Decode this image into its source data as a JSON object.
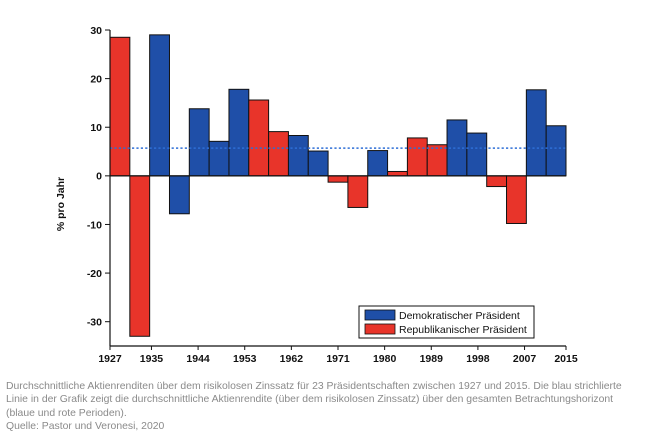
{
  "chart_data": {
    "type": "bar",
    "ylabel": "% pro Jahr",
    "ylim": [
      -35,
      30
    ],
    "yticks": [
      30,
      20,
      10,
      0,
      -10,
      -20,
      -30
    ],
    "xlim": [
      1927,
      2015
    ],
    "xticks": [
      1927,
      1935,
      1944,
      1953,
      1962,
      1971,
      1980,
      1989,
      1998,
      2007,
      2015
    ],
    "average_line": 5.7,
    "legend": [
      {
        "key": "dem",
        "label": "Demokratischer Präsident",
        "color": "#1f4fa8"
      },
      {
        "key": "rep",
        "label": "Republikanischer Präsident",
        "color": "#e8342a"
      }
    ],
    "bars": [
      {
        "value": 28.5,
        "party": "rep"
      },
      {
        "value": -33.0,
        "party": "rep"
      },
      {
        "value": 29.0,
        "party": "dem"
      },
      {
        "value": -7.8,
        "party": "dem"
      },
      {
        "value": 13.8,
        "party": "dem"
      },
      {
        "value": 7.1,
        "party": "dem"
      },
      {
        "value": 17.8,
        "party": "dem"
      },
      {
        "value": 15.6,
        "party": "rep"
      },
      {
        "value": 9.1,
        "party": "rep"
      },
      {
        "value": 8.3,
        "party": "dem"
      },
      {
        "value": 5.1,
        "party": "dem"
      },
      {
        "value": -1.3,
        "party": "rep"
      },
      {
        "value": -6.5,
        "party": "rep"
      },
      {
        "value": 5.2,
        "party": "dem"
      },
      {
        "value": 0.9,
        "party": "rep"
      },
      {
        "value": 7.8,
        "party": "rep"
      },
      {
        "value": 6.4,
        "party": "rep"
      },
      {
        "value": 11.5,
        "party": "dem"
      },
      {
        "value": 8.8,
        "party": "dem"
      },
      {
        "value": -2.2,
        "party": "rep"
      },
      {
        "value": -9.8,
        "party": "rep"
      },
      {
        "value": 17.7,
        "party": "dem"
      },
      {
        "value": 10.3,
        "party": "dem"
      }
    ]
  },
  "caption": {
    "line1": "Durchschnittliche Aktienrenditen über dem risikolosen Zinssatz für 23 Präsidentschaften zwischen 1927 und 2015. Die blau strichlierte",
    "line2": "Linie in der Grafik zeigt die durchschnittliche Aktienrendite (über dem risikolosen Zinssatz) über den gesamten Betrachtungshorizont",
    "line3": "(blaue und rote Perioden).",
    "source": "Quelle: Pastor und Veronesi, 2020"
  }
}
